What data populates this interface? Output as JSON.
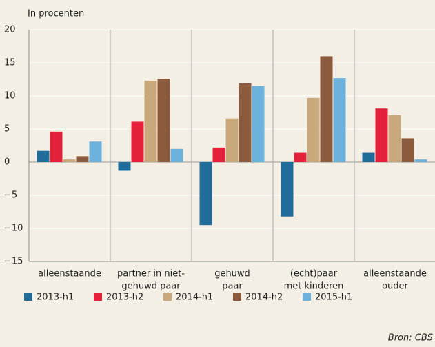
{
  "chart_data": {
    "type": "bar",
    "y_label": "In procenten",
    "categories": [
      [
        "alleenstaande"
      ],
      [
        "partner in niet-",
        "gehuwd paar"
      ],
      [
        "gehuwd",
        "paar"
      ],
      [
        "(echt)paar",
        "met kinderen"
      ],
      [
        "alleenstaande",
        "ouder"
      ]
    ],
    "series": [
      {
        "name": "2013-h1",
        "color": "#1f6b9a",
        "values": [
          1.7,
          -1.3,
          -9.5,
          -8.2,
          1.4
        ]
      },
      {
        "name": "2013-h2",
        "color": "#e3213b",
        "values": [
          4.6,
          6.1,
          2.2,
          1.4,
          8.1
        ]
      },
      {
        "name": "2014-h1",
        "color": "#c9a87c",
        "values": [
          0.4,
          12.3,
          6.6,
          9.7,
          7.1
        ]
      },
      {
        "name": "2014-h2",
        "color": "#8c5a3c",
        "values": [
          0.9,
          12.6,
          11.9,
          16.0,
          3.6
        ]
      },
      {
        "name": "2015-h1",
        "color": "#6cb2dd",
        "values": [
          3.1,
          2.0,
          11.5,
          12.7,
          0.4
        ]
      }
    ],
    "ylim": [
      -15,
      20
    ],
    "yticks": [
      {
        "value": -15,
        "label": "−15"
      },
      {
        "value": -10,
        "label": "−10"
      },
      {
        "value": -5,
        "label": "−5"
      },
      0,
      5,
      10,
      15,
      20
    ],
    "grid": true,
    "source": "Bron: CBS"
  }
}
